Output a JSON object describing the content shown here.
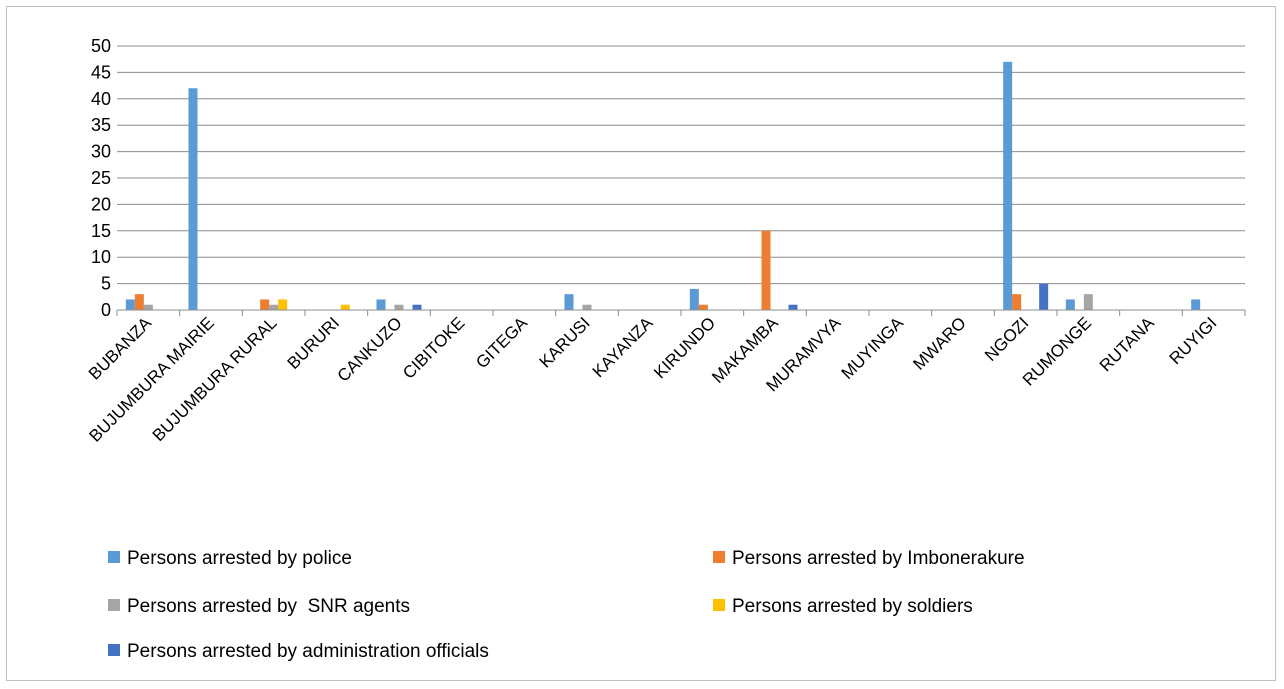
{
  "chart_data": {
    "type": "bar",
    "title": "",
    "xlabel": "",
    "ylabel": "",
    "ylim": [
      0,
      50
    ],
    "yticks": [
      0,
      5,
      10,
      15,
      20,
      25,
      30,
      35,
      40,
      45,
      50
    ],
    "grid": true,
    "legend_position": "bottom",
    "categories": [
      "BUBANZA",
      "BUJUMBURA MAIRIE",
      "BUJUMBURA RURAL",
      "BURURI",
      "CANKUZO",
      "CIBITOKE",
      "GITEGA",
      "KARUSI",
      "KAYANZA",
      "KIRUNDO",
      "MAKAMBA",
      "MURAMVYA",
      "MUYINGA",
      "MWARO",
      "NGOZI",
      "RUMONGE",
      "RUTANA",
      "RUYIGI"
    ],
    "series": [
      {
        "name": "Persons arrested by police",
        "color": "#5b9bd5",
        "values": [
          2,
          42,
          0,
          0,
          2,
          0,
          0,
          3,
          0,
          4,
          0,
          0,
          0,
          0,
          47,
          2,
          0,
          2
        ]
      },
      {
        "name": "Persons arrested by Imbonerakure",
        "color": "#ed7d31",
        "values": [
          3,
          0,
          2,
          0,
          0,
          0,
          0,
          0,
          0,
          1,
          15,
          0,
          0,
          0,
          3,
          0,
          0,
          0
        ]
      },
      {
        "name": "Persons arrested by  SNR agents",
        "color": "#a5a5a5",
        "values": [
          1,
          0,
          1,
          0,
          1,
          0,
          0,
          1,
          0,
          0,
          0,
          0,
          0,
          0,
          0,
          3,
          0,
          0
        ]
      },
      {
        "name": "Persons arrested by soldiers",
        "color": "#ffc000",
        "values": [
          0,
          0,
          2,
          1,
          0,
          0,
          0,
          0,
          0,
          0,
          0,
          0,
          0,
          0,
          0,
          0,
          0,
          0
        ]
      },
      {
        "name": "Persons arrested by administration officials",
        "color": "#4472c4",
        "values": [
          0,
          0,
          0,
          0,
          1,
          0,
          0,
          0,
          0,
          0,
          1,
          0,
          0,
          0,
          5,
          0,
          0,
          0
        ]
      }
    ]
  }
}
